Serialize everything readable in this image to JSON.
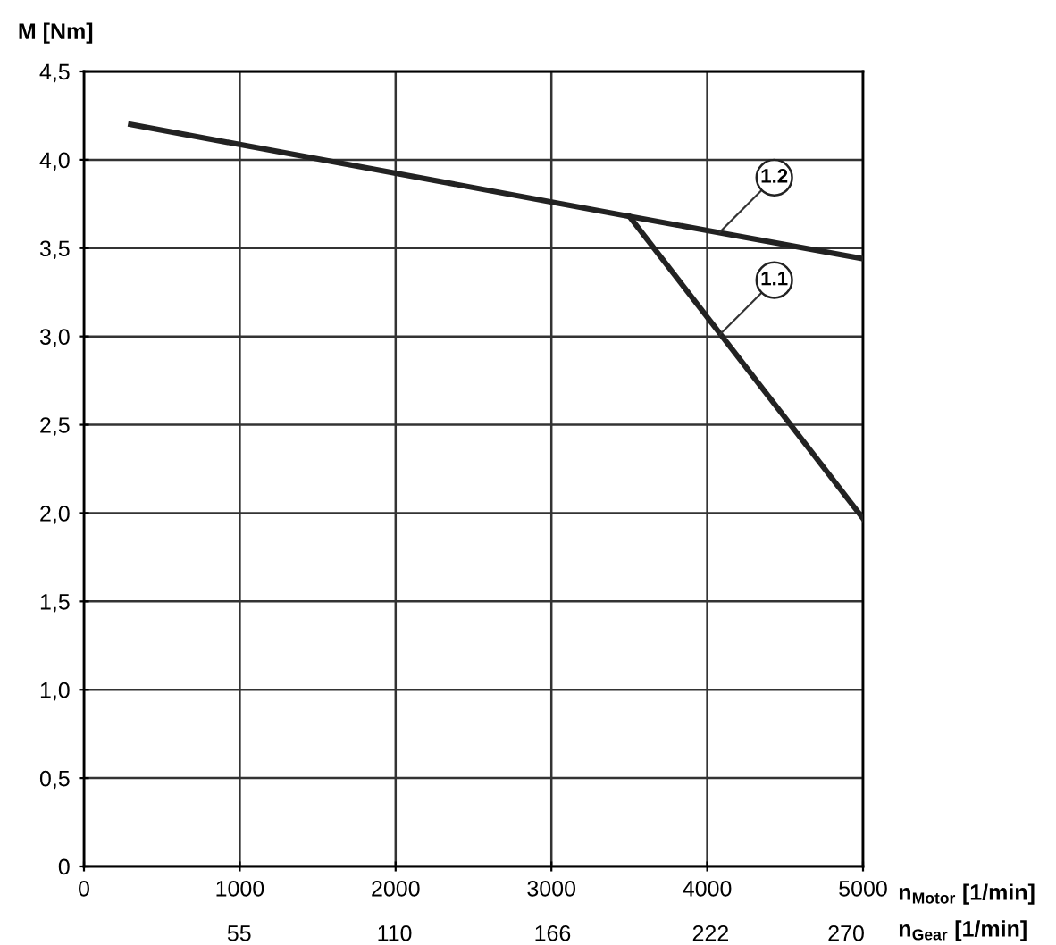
{
  "chart_data": {
    "type": "line",
    "xlabel": "n$_{Motor}$ [1/min]",
    "x2label": "n$_{Gear}$ [1/min]",
    "ylabel": "M [Nm]",
    "series": [
      {
        "color": "#222222",
        "x": [
          300,
          3500,
          5000
        ],
        "values": [
          4.2,
          3.68,
          3.44
        ]
      },
      {
        "color": "#222222",
        "x": [
          3500,
          5000
        ],
        "values": [
          3.68,
          1.97
        ]
      }
    ],
    "annotations": [
      {
        "text": "1.2",
        "x": 4080,
        "y": 3.59
      },
      {
        "text": "1.1",
        "x": 4080,
        "y": 3.01
      }
    ],
    "xlim": [
      0,
      5000
    ],
    "xticks": [
      0,
      1000,
      2000,
      3000,
      4000,
      5000
    ],
    "x2lim": [
      0,
      276
    ],
    "x2ticks": [
      55,
      110,
      166,
      222,
      270
    ],
    "ylim": [
      0,
      4.5
    ],
    "yticks": [
      {
        "value": 0,
        "label": "0"
      },
      {
        "value": 0.5,
        "label": "0,5"
      },
      {
        "value": 1.0,
        "label": "1,0"
      },
      {
        "value": 1.5,
        "label": "1,5"
      },
      {
        "value": 2.0,
        "label": "2,0"
      },
      {
        "value": 2.5,
        "label": "2,5"
      },
      {
        "value": 3.0,
        "label": "3,0"
      },
      {
        "value": 3.5,
        "label": "3,5"
      },
      {
        "value": 4.0,
        "label": "4,0"
      },
      {
        "value": 4.5,
        "label": "4,5"
      }
    ],
    "grid": true,
    "legend": false,
    "marker": "none",
    "line_style": "solid"
  }
}
